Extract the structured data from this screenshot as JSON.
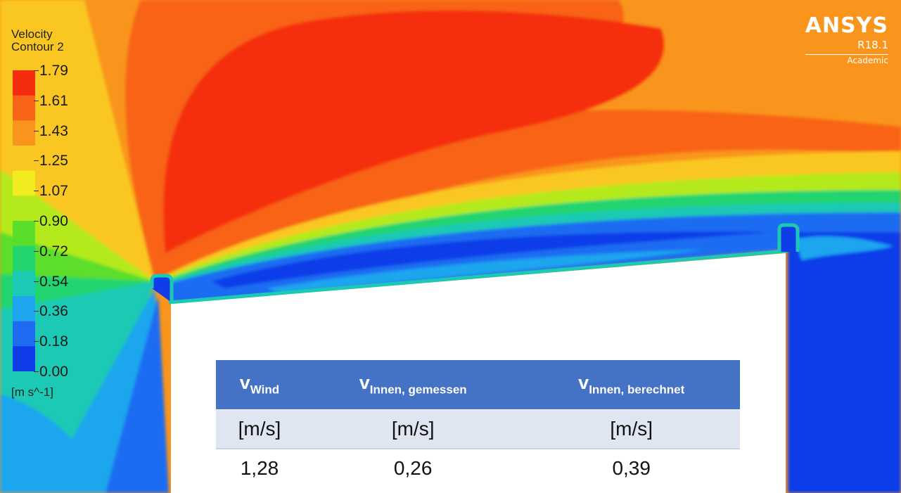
{
  "legend": {
    "title_line1": "Velocity",
    "title_line2": "Contour 2",
    "ticks": [
      "1.79",
      "1.61",
      "1.43",
      "1.25",
      "1.07",
      "0.90",
      "0.72",
      "0.54",
      "0.36",
      "0.18",
      "0.00"
    ],
    "unit": "[m s^-1]",
    "band_colors": [
      "#f52d10",
      "#f86418",
      "#f9951c",
      "#fac723",
      "#f1ec1f",
      "#b4ea1d",
      "#5bde2a",
      "#23d46f",
      "#1bc9b4",
      "#1da6ee",
      "#1f6cf2",
      "#0f3de8"
    ]
  },
  "brand": {
    "name": "ANSYS",
    "version": "R18.1",
    "edition": "Academic"
  },
  "table": {
    "headers": [
      {
        "main": "v",
        "sub": "Wind"
      },
      {
        "main": "v",
        "sub": "Innen, gemessen"
      },
      {
        "main": "v",
        "sub": "Innen, berechnet"
      }
    ],
    "units": [
      "[m/s]",
      "[m/s]",
      "[m/s]"
    ],
    "values": [
      "1,28",
      "0,26",
      "0,39"
    ],
    "header_color": "#4472c4"
  }
}
